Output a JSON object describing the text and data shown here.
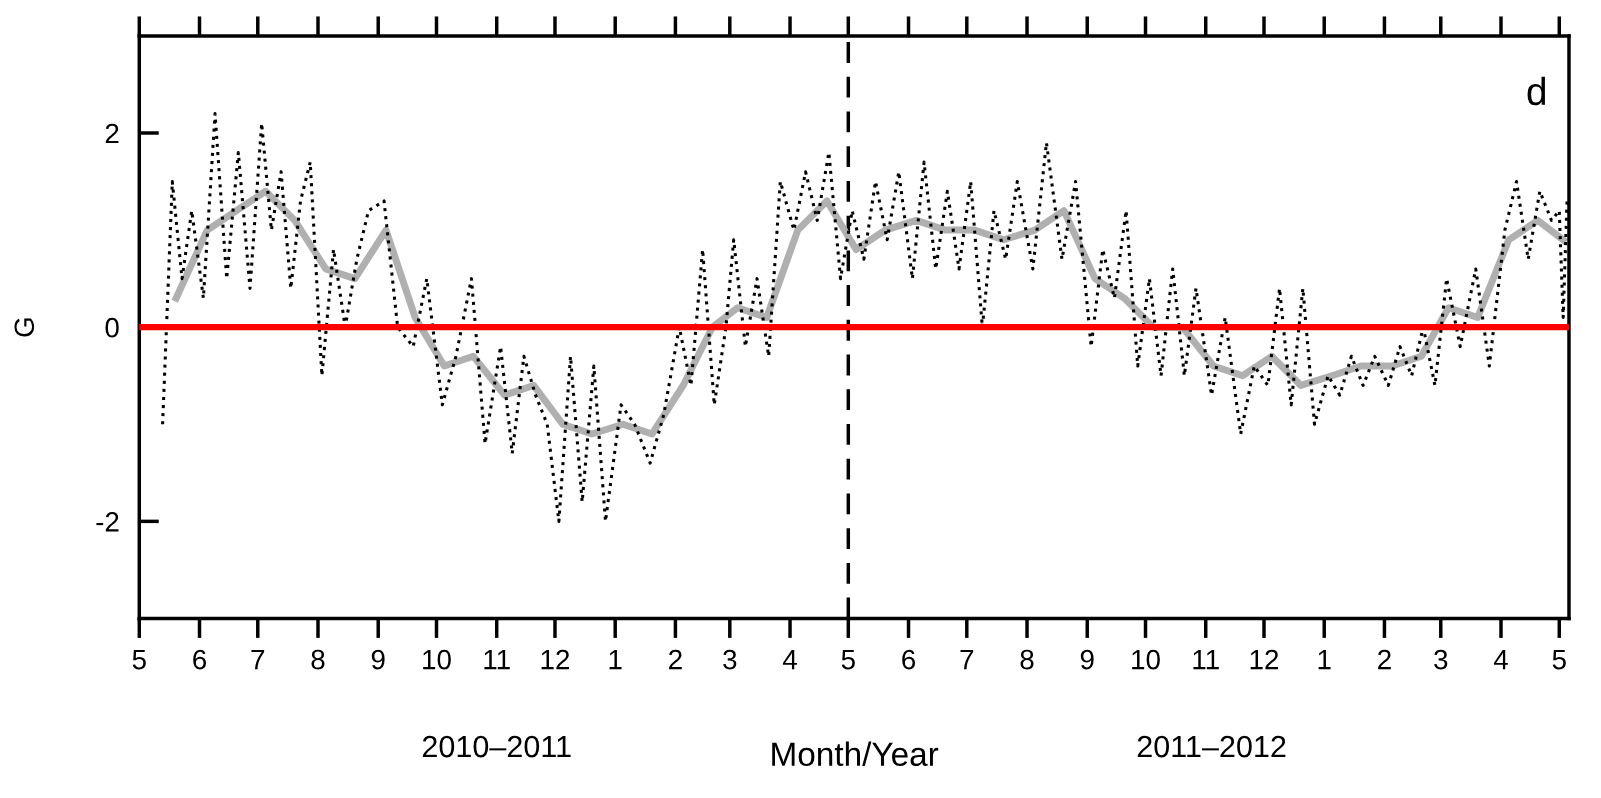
{
  "chart_data": {
    "type": "line",
    "xlabel": "Month/Year",
    "ylabel": "G",
    "annotations": [
      "2010–2011",
      "2011–2012",
      "d"
    ],
    "xlim": [
      "2010-05-01",
      "2012-05-06"
    ],
    "ylim": [
      -3,
      3
    ],
    "yticks": [
      -2,
      0,
      2
    ],
    "xticks": [
      {
        "value": "2010-05-01",
        "label": "5"
      },
      {
        "value": "2010-06-01",
        "label": "6"
      },
      {
        "value": "2010-07-01",
        "label": "7"
      },
      {
        "value": "2010-08-01",
        "label": "8"
      },
      {
        "value": "2010-09-01",
        "label": "9"
      },
      {
        "value": "2010-10-01",
        "label": "10"
      },
      {
        "value": "2010-11-01",
        "label": "11"
      },
      {
        "value": "2010-12-01",
        "label": "12"
      },
      {
        "value": "2011-01-01",
        "label": "1"
      },
      {
        "value": "2011-02-01",
        "label": "2"
      },
      {
        "value": "2011-03-01",
        "label": "3"
      },
      {
        "value": "2011-04-01",
        "label": "4"
      },
      {
        "value": "2011-05-01",
        "label": "5"
      },
      {
        "value": "2011-06-01",
        "label": "6"
      },
      {
        "value": "2011-07-01",
        "label": "7"
      },
      {
        "value": "2011-08-01",
        "label": "8"
      },
      {
        "value": "2011-09-01",
        "label": "9"
      },
      {
        "value": "2011-10-01",
        "label": "10"
      },
      {
        "value": "2011-11-01",
        "label": "11"
      },
      {
        "value": "2011-12-01",
        "label": "12"
      },
      {
        "value": "2012-01-01",
        "label": "1"
      },
      {
        "value": "2012-02-01",
        "label": "2"
      },
      {
        "value": "2012-03-01",
        "label": "3"
      },
      {
        "value": "2012-04-01",
        "label": "4"
      },
      {
        "value": "2012-05-01",
        "label": "5"
      }
    ],
    "grid": false,
    "legend": false,
    "ref_lines": [
      {
        "axis": "y",
        "value": 0,
        "color": "#ff0000",
        "line_style": "solid"
      },
      {
        "axis": "x",
        "value": "2011-05-01",
        "color": "#000000",
        "line_style": "dashed"
      }
    ],
    "series": [
      {
        "color": "#b0b0b0",
        "line_style": "solid",
        "x": [
          "2010-05-20",
          "2010-06-05",
          "2010-06-20",
          "2010-07-05",
          "2010-07-20",
          "2010-08-05",
          "2010-08-20",
          "2010-09-05",
          "2010-09-20",
          "2010-10-05",
          "2010-10-20",
          "2010-11-05",
          "2010-11-20",
          "2010-12-05",
          "2010-12-20",
          "2011-01-05",
          "2011-01-20",
          "2011-02-05",
          "2011-02-20",
          "2011-03-05",
          "2011-03-20",
          "2011-04-05",
          "2011-04-20",
          "2011-05-05",
          "2011-05-20",
          "2011-06-05",
          "2011-06-20",
          "2011-07-05",
          "2011-07-20",
          "2011-08-05",
          "2011-08-20",
          "2011-09-05",
          "2011-09-20",
          "2011-10-05",
          "2011-10-20",
          "2011-11-05",
          "2011-11-20",
          "2011-12-05",
          "2011-12-20",
          "2012-01-05",
          "2012-01-20",
          "2012-02-05",
          "2012-02-20",
          "2012-03-05",
          "2012-03-20",
          "2012-04-05",
          "2012-04-20",
          "2012-05-03"
        ],
        "values": [
          0.3,
          1.0,
          1.2,
          1.4,
          1.1,
          0.6,
          0.5,
          1.0,
          0.1,
          -0.4,
          -0.3,
          -0.7,
          -0.6,
          -1.0,
          -1.1,
          -1.0,
          -1.1,
          -0.6,
          0.0,
          0.2,
          0.1,
          1.0,
          1.3,
          0.8,
          1.0,
          1.1,
          1.0,
          1.0,
          0.9,
          1.0,
          1.2,
          0.5,
          0.3,
          0.0,
          0.0,
          -0.4,
          -0.5,
          -0.3,
          -0.6,
          -0.5,
          -0.4,
          -0.4,
          -0.3,
          0.2,
          0.1,
          0.9,
          1.1,
          0.9
        ]
      },
      {
        "color": "#000000",
        "line_style": "dotted",
        "x": [
          "2010-05-13",
          "2010-05-18",
          "2010-05-23",
          "2010-05-28",
          "2010-06-03",
          "2010-06-09",
          "2010-06-15",
          "2010-06-21",
          "2010-06-27",
          "2010-07-03",
          "2010-07-08",
          "2010-07-13",
          "2010-07-18",
          "2010-07-23",
          "2010-07-28",
          "2010-08-03",
          "2010-08-09",
          "2010-08-15",
          "2010-08-21",
          "2010-08-27",
          "2010-09-04",
          "2010-09-11",
          "2010-09-19",
          "2010-09-26",
          "2010-10-04",
          "2010-10-11",
          "2010-10-19",
          "2010-10-26",
          "2010-11-03",
          "2010-11-09",
          "2010-11-15",
          "2010-11-21",
          "2010-11-27",
          "2010-12-03",
          "2010-12-09",
          "2010-12-15",
          "2010-12-21",
          "2010-12-27",
          "2011-01-04",
          "2011-01-11",
          "2011-01-19",
          "2011-01-26",
          "2011-02-03",
          "2011-02-09",
          "2011-02-15",
          "2011-02-21",
          "2011-02-27",
          "2011-03-03",
          "2011-03-09",
          "2011-03-15",
          "2011-03-21",
          "2011-03-27",
          "2011-04-03",
          "2011-04-09",
          "2011-04-15",
          "2011-04-21",
          "2011-04-27",
          "2011-05-03",
          "2011-05-09",
          "2011-05-15",
          "2011-05-21",
          "2011-05-27",
          "2011-06-03",
          "2011-06-09",
          "2011-06-15",
          "2011-06-21",
          "2011-06-27",
          "2011-07-03",
          "2011-07-09",
          "2011-07-15",
          "2011-07-21",
          "2011-07-27",
          "2011-08-04",
          "2011-08-11",
          "2011-08-19",
          "2011-08-26",
          "2011-09-03",
          "2011-09-09",
          "2011-09-15",
          "2011-09-21",
          "2011-09-27",
          "2011-10-03",
          "2011-10-09",
          "2011-10-15",
          "2011-10-21",
          "2011-10-27",
          "2011-11-04",
          "2011-11-11",
          "2011-11-19",
          "2011-11-26",
          "2011-12-03",
          "2011-12-09",
          "2011-12-15",
          "2011-12-21",
          "2011-12-27",
          "2012-01-03",
          "2012-01-09",
          "2012-01-15",
          "2012-01-21",
          "2012-01-27",
          "2012-02-03",
          "2012-02-09",
          "2012-02-15",
          "2012-02-21",
          "2012-02-27",
          "2012-03-04",
          "2012-03-11",
          "2012-03-19",
          "2012-03-26",
          "2012-04-03",
          "2012-04-09",
          "2012-04-15",
          "2012-04-21",
          "2012-04-27",
          "2012-05-01",
          "2012-05-03",
          "2012-05-05"
        ],
        "values": [
          -1.0,
          1.5,
          0.5,
          1.2,
          0.3,
          2.2,
          0.5,
          1.8,
          0.4,
          2.1,
          1.0,
          1.6,
          0.4,
          1.3,
          1.7,
          -0.5,
          0.8,
          0.0,
          0.7,
          1.2,
          1.3,
          0.0,
          -0.2,
          0.5,
          -0.8,
          -0.3,
          0.5,
          -1.2,
          -0.2,
          -1.3,
          -0.3,
          -0.7,
          -1.0,
          -2.0,
          -0.3,
          -1.8,
          -0.4,
          -2.0,
          -0.8,
          -1.0,
          -1.4,
          -0.9,
          0.0,
          -0.6,
          0.8,
          -0.8,
          0.0,
          0.9,
          -0.2,
          0.5,
          -0.3,
          1.5,
          1.0,
          1.6,
          1.1,
          1.8,
          0.5,
          1.2,
          0.7,
          1.5,
          0.9,
          1.6,
          0.5,
          1.7,
          0.6,
          1.4,
          0.6,
          1.5,
          0.0,
          1.2,
          0.7,
          1.5,
          0.6,
          1.9,
          0.7,
          1.5,
          -0.2,
          0.8,
          0.3,
          1.2,
          -0.4,
          0.5,
          -0.5,
          0.6,
          -0.5,
          0.4,
          -0.7,
          0.1,
          -1.1,
          -0.4,
          -0.6,
          0.4,
          -0.8,
          0.4,
          -1.0,
          -0.5,
          -0.7,
          -0.3,
          -0.6,
          -0.3,
          -0.6,
          -0.2,
          -0.5,
          0.0,
          -0.6,
          0.5,
          -0.2,
          0.6,
          -0.4,
          1.0,
          1.5,
          0.7,
          1.4,
          1.1,
          1.2,
          0.1,
          1.3
        ]
      }
    ]
  }
}
